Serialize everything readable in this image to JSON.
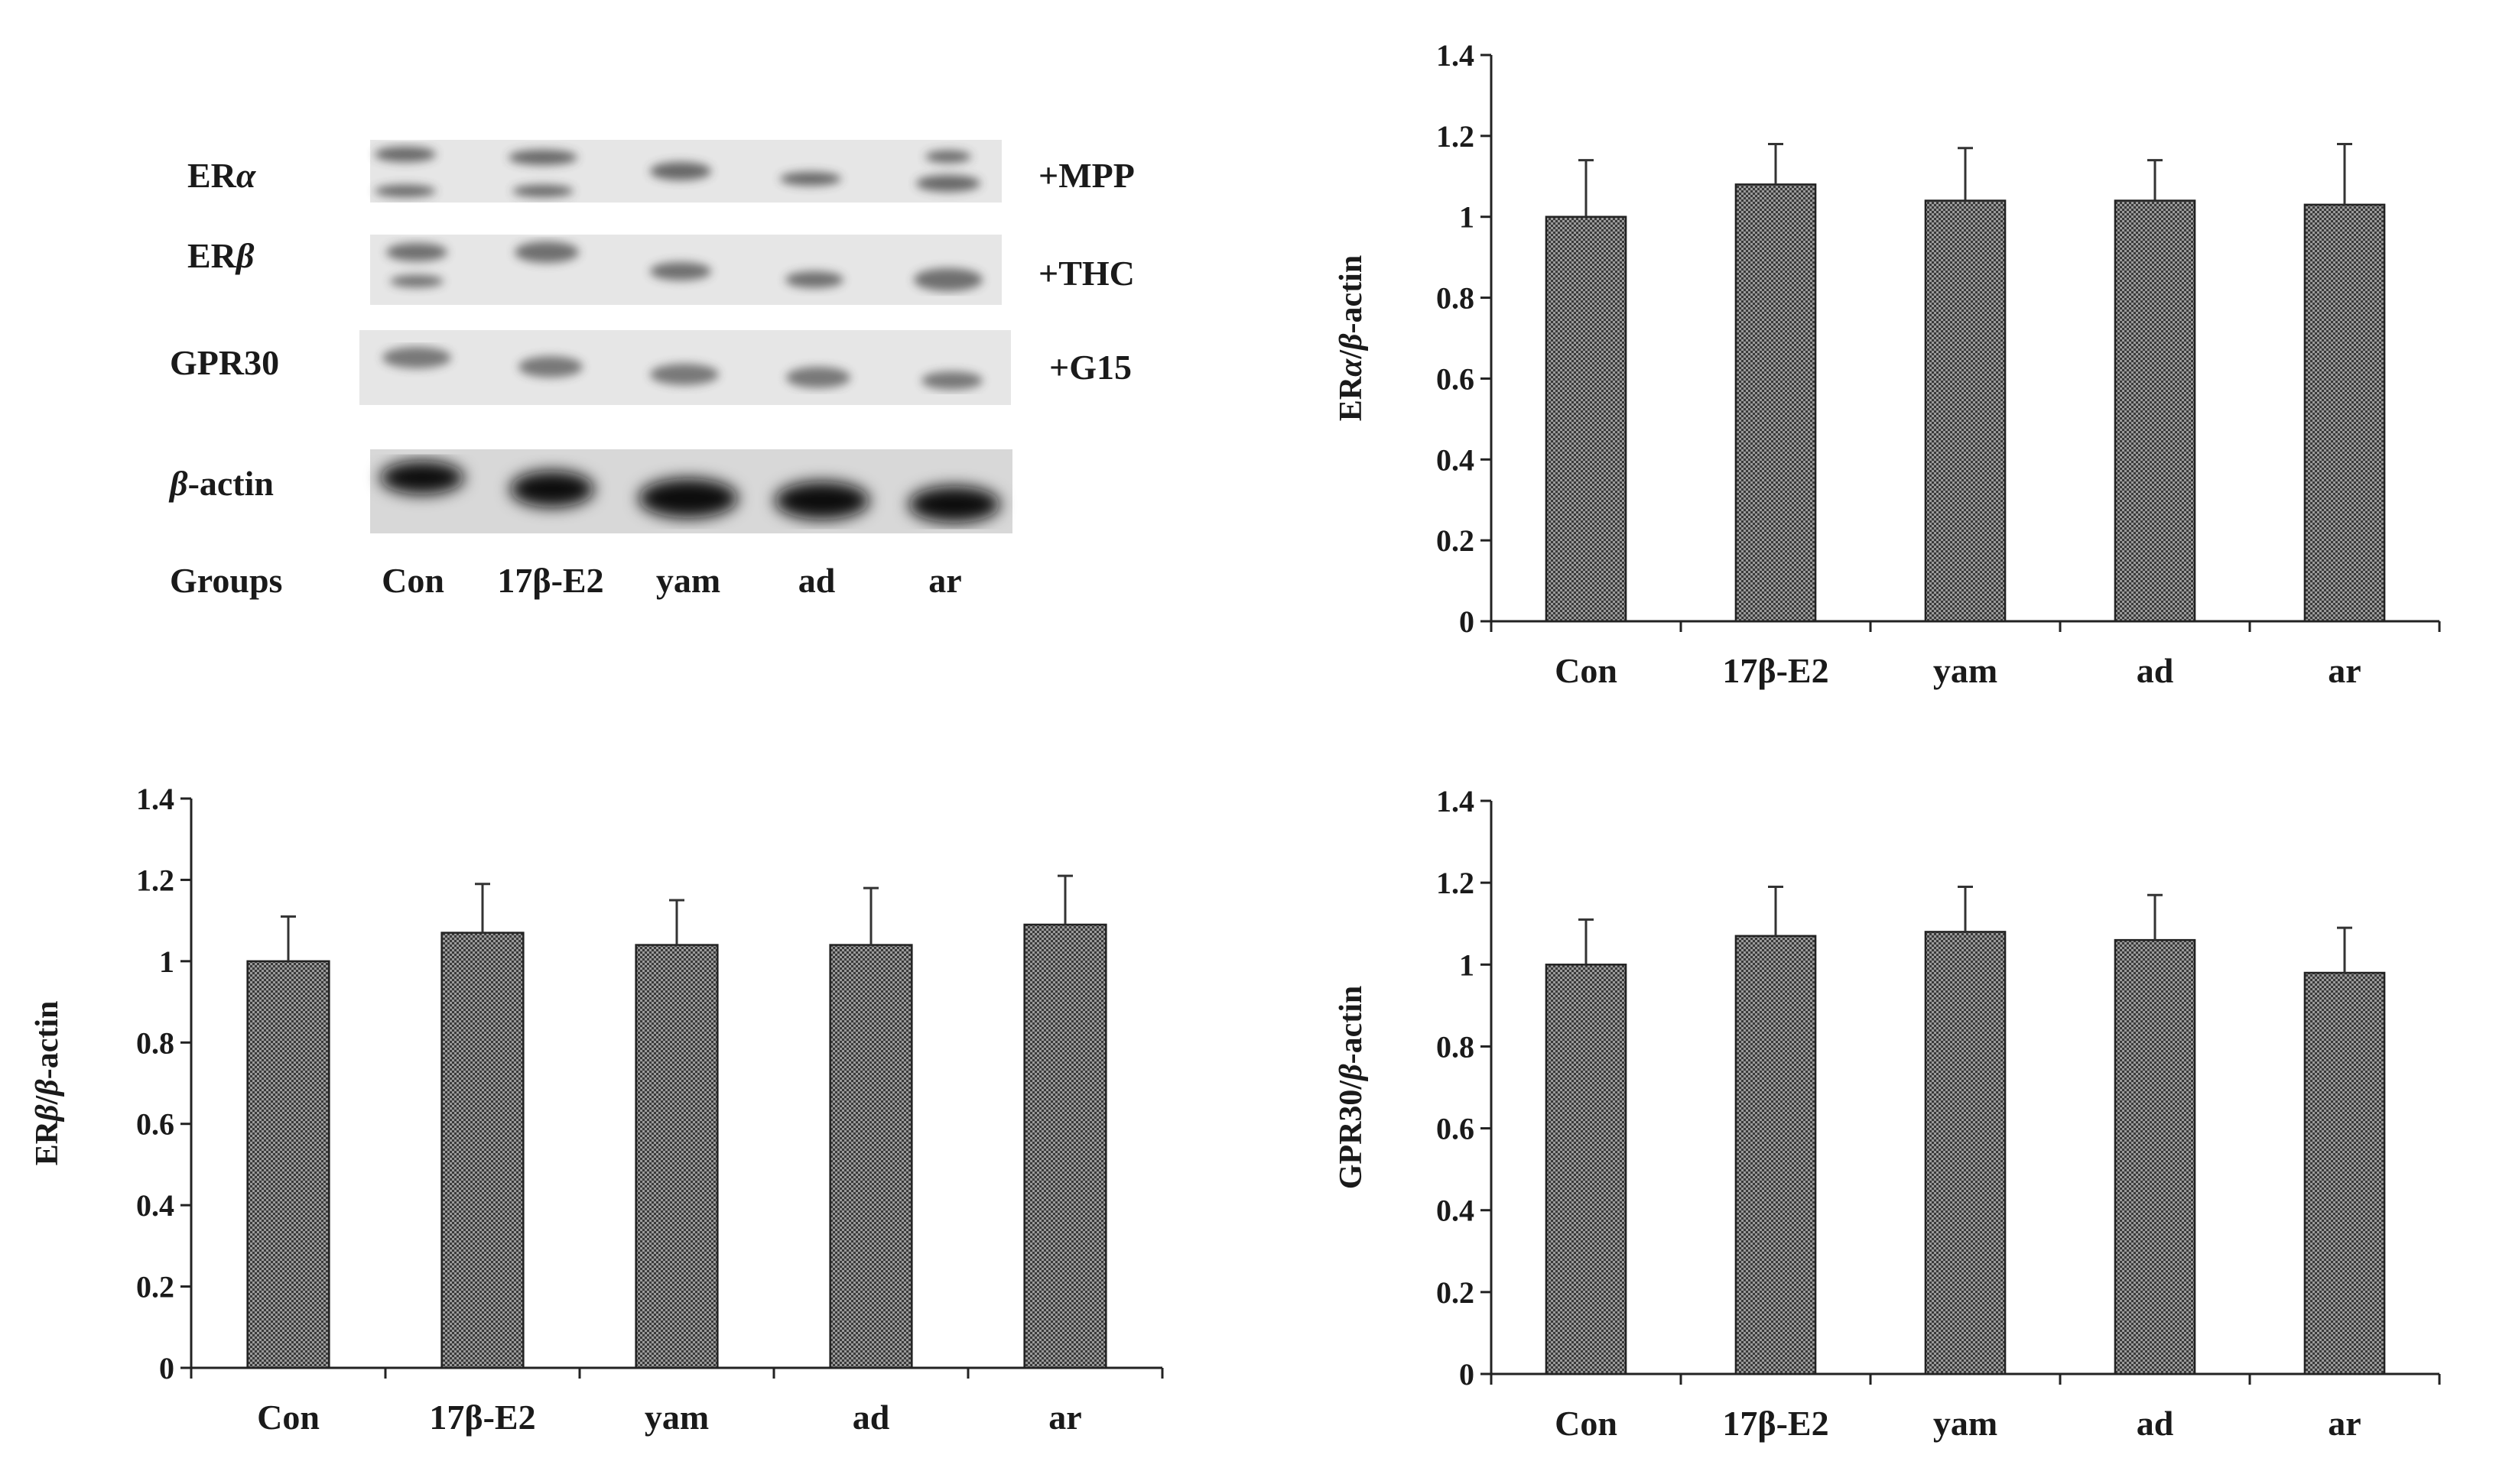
{
  "blot": {
    "rows": [
      {
        "label_main": "ER",
        "label_greek": "α",
        "treatment": "+MPP"
      },
      {
        "label_main": "ER",
        "label_greek": "β",
        "treatment": "+THC"
      },
      {
        "label_main": "GPR30",
        "label_greek": "",
        "treatment": "+G15"
      },
      {
        "label_main": "-actin",
        "label_greek": "β",
        "treatment": ""
      }
    ],
    "groups_label": "Groups",
    "groups": [
      "Con",
      "17β-E2",
      "yam",
      "ad",
      "ar"
    ],
    "colors": {
      "background": "#e4e4e4",
      "band": "#141414"
    }
  },
  "chart_data": [
    {
      "type": "bar",
      "ylabel": "ERα/β-actin",
      "categories": [
        "Con",
        "17β-E2",
        "yam",
        "ad",
        "ar"
      ],
      "values": [
        1.0,
        1.08,
        1.04,
        1.04,
        1.03
      ],
      "errors": [
        0.14,
        0.1,
        0.13,
        0.1,
        0.15
      ],
      "ylim": [
        0,
        1.4
      ],
      "yticks": [
        "0",
        "0.2",
        "0.4",
        "0.6",
        "0.8",
        "1",
        "1.2",
        "1.4"
      ],
      "grid": false,
      "bar_fill": "#7a7a7a"
    },
    {
      "type": "bar",
      "ylabel": "ERβ/β-actin",
      "categories": [
        "Con",
        "17β-E2",
        "yam",
        "ad",
        "ar"
      ],
      "values": [
        1.0,
        1.07,
        1.04,
        1.04,
        1.09
      ],
      "errors": [
        0.11,
        0.12,
        0.11,
        0.14,
        0.12
      ],
      "ylim": [
        0,
        1.4
      ],
      "yticks": [
        "0",
        "0.2",
        "0.4",
        "0.6",
        "0.8",
        "1",
        "1.2",
        "1.4"
      ],
      "grid": false,
      "bar_fill": "#7a7a7a"
    },
    {
      "type": "bar",
      "ylabel": "GPR30/β-actin",
      "categories": [
        "Con",
        "17β-E2",
        "yam",
        "ad",
        "ar"
      ],
      "values": [
        1.0,
        1.07,
        1.08,
        1.06,
        0.98
      ],
      "errors": [
        0.11,
        0.12,
        0.11,
        0.11,
        0.11
      ],
      "ylim": [
        0,
        1.4
      ],
      "yticks": [
        "0",
        "0.2",
        "0.4",
        "0.6",
        "0.8",
        "1",
        "1.2",
        "1.4"
      ],
      "grid": false,
      "bar_fill": "#7a7a7a"
    }
  ]
}
